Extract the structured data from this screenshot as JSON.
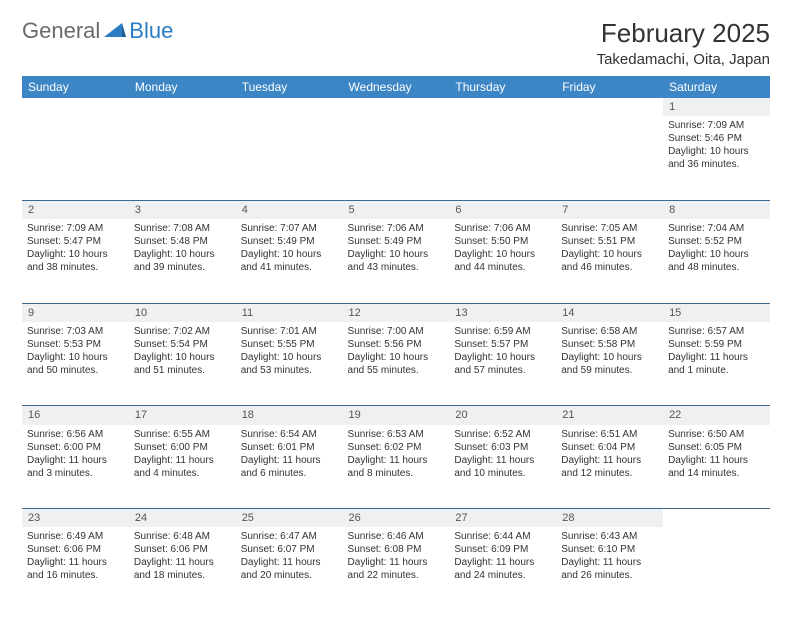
{
  "logo": {
    "part1": "General",
    "part2": "Blue"
  },
  "title": "February 2025",
  "location": "Takedamachi, Oita, Japan",
  "colors": {
    "header_bg": "#3d86c6",
    "header_text": "#ffffff",
    "daynum_bg": "#eef0f1",
    "row_border": "#3d6a92",
    "logo_gray": "#6b6b6b",
    "logo_blue": "#2b7dc4",
    "text": "#333333"
  },
  "weekdays": [
    "Sunday",
    "Monday",
    "Tuesday",
    "Wednesday",
    "Thursday",
    "Friday",
    "Saturday"
  ],
  "weeks": [
    {
      "nums": [
        "",
        "",
        "",
        "",
        "",
        "",
        "1"
      ],
      "cells": [
        null,
        null,
        null,
        null,
        null,
        null,
        {
          "sunrise": "7:09 AM",
          "sunset": "5:46 PM",
          "dayh": "10",
          "daym": "36"
        }
      ]
    },
    {
      "nums": [
        "2",
        "3",
        "4",
        "5",
        "6",
        "7",
        "8"
      ],
      "cells": [
        {
          "sunrise": "7:09 AM",
          "sunset": "5:47 PM",
          "dayh": "10",
          "daym": "38"
        },
        {
          "sunrise": "7:08 AM",
          "sunset": "5:48 PM",
          "dayh": "10",
          "daym": "39"
        },
        {
          "sunrise": "7:07 AM",
          "sunset": "5:49 PM",
          "dayh": "10",
          "daym": "41"
        },
        {
          "sunrise": "7:06 AM",
          "sunset": "5:49 PM",
          "dayh": "10",
          "daym": "43"
        },
        {
          "sunrise": "7:06 AM",
          "sunset": "5:50 PM",
          "dayh": "10",
          "daym": "44"
        },
        {
          "sunrise": "7:05 AM",
          "sunset": "5:51 PM",
          "dayh": "10",
          "daym": "46"
        },
        {
          "sunrise": "7:04 AM",
          "sunset": "5:52 PM",
          "dayh": "10",
          "daym": "48"
        }
      ]
    },
    {
      "nums": [
        "9",
        "10",
        "11",
        "12",
        "13",
        "14",
        "15"
      ],
      "cells": [
        {
          "sunrise": "7:03 AM",
          "sunset": "5:53 PM",
          "dayh": "10",
          "daym": "50"
        },
        {
          "sunrise": "7:02 AM",
          "sunset": "5:54 PM",
          "dayh": "10",
          "daym": "51"
        },
        {
          "sunrise": "7:01 AM",
          "sunset": "5:55 PM",
          "dayh": "10",
          "daym": "53"
        },
        {
          "sunrise": "7:00 AM",
          "sunset": "5:56 PM",
          "dayh": "10",
          "daym": "55"
        },
        {
          "sunrise": "6:59 AM",
          "sunset": "5:57 PM",
          "dayh": "10",
          "daym": "57"
        },
        {
          "sunrise": "6:58 AM",
          "sunset": "5:58 PM",
          "dayh": "10",
          "daym": "59"
        },
        {
          "sunrise": "6:57 AM",
          "sunset": "5:59 PM",
          "dayh": "11",
          "daym": "1",
          "singular": true
        }
      ]
    },
    {
      "nums": [
        "16",
        "17",
        "18",
        "19",
        "20",
        "21",
        "22"
      ],
      "cells": [
        {
          "sunrise": "6:56 AM",
          "sunset": "6:00 PM",
          "dayh": "11",
          "daym": "3"
        },
        {
          "sunrise": "6:55 AM",
          "sunset": "6:00 PM",
          "dayh": "11",
          "daym": "4"
        },
        {
          "sunrise": "6:54 AM",
          "sunset": "6:01 PM",
          "dayh": "11",
          "daym": "6"
        },
        {
          "sunrise": "6:53 AM",
          "sunset": "6:02 PM",
          "dayh": "11",
          "daym": "8"
        },
        {
          "sunrise": "6:52 AM",
          "sunset": "6:03 PM",
          "dayh": "11",
          "daym": "10"
        },
        {
          "sunrise": "6:51 AM",
          "sunset": "6:04 PM",
          "dayh": "11",
          "daym": "12"
        },
        {
          "sunrise": "6:50 AM",
          "sunset": "6:05 PM",
          "dayh": "11",
          "daym": "14"
        }
      ]
    },
    {
      "nums": [
        "23",
        "24",
        "25",
        "26",
        "27",
        "28",
        ""
      ],
      "cells": [
        {
          "sunrise": "6:49 AM",
          "sunset": "6:06 PM",
          "dayh": "11",
          "daym": "16"
        },
        {
          "sunrise": "6:48 AM",
          "sunset": "6:06 PM",
          "dayh": "11",
          "daym": "18"
        },
        {
          "sunrise": "6:47 AM",
          "sunset": "6:07 PM",
          "dayh": "11",
          "daym": "20"
        },
        {
          "sunrise": "6:46 AM",
          "sunset": "6:08 PM",
          "dayh": "11",
          "daym": "22"
        },
        {
          "sunrise": "6:44 AM",
          "sunset": "6:09 PM",
          "dayh": "11",
          "daym": "24"
        },
        {
          "sunrise": "6:43 AM",
          "sunset": "6:10 PM",
          "dayh": "11",
          "daym": "26"
        },
        null
      ]
    }
  ],
  "labels": {
    "sunrise": "Sunrise:",
    "sunset": "Sunset:",
    "daylight": "Daylight:",
    "hours": "hours",
    "and": "and",
    "minutes": "minutes.",
    "minute": "minute."
  }
}
